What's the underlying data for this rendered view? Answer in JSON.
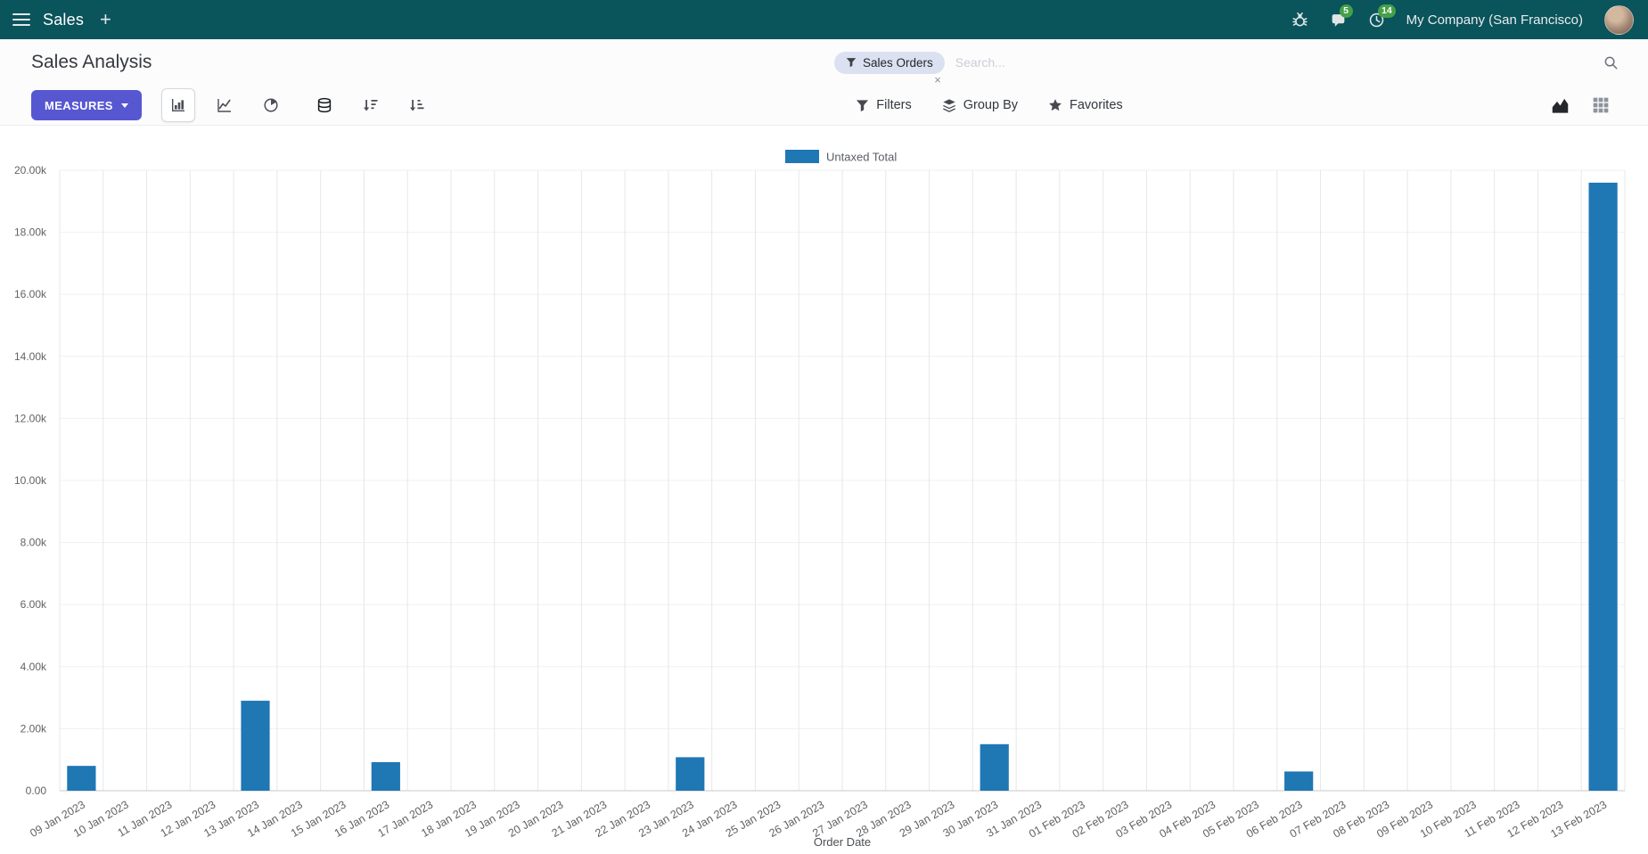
{
  "navbar": {
    "app_name": "Sales",
    "plus_label": "+",
    "messages_badge": "5",
    "activities_badge": "14",
    "company": "My Company (San Francisco)"
  },
  "control_panel": {
    "title": "Sales Analysis",
    "search": {
      "facet_label": "Sales Orders",
      "facet_remove": "×",
      "placeholder": "Search..."
    },
    "measures_label": "MEASURES",
    "filters_label": "Filters",
    "group_by_label": "Group By",
    "favorites_label": "Favorites"
  },
  "icons": {
    "menu-icon": "hamburger",
    "debug-icon": "bug",
    "messages-icon": "speech-bubble",
    "activities-icon": "clock",
    "search-icon": "magnifier",
    "filter-icon": "funnel",
    "group-by-icon": "layers",
    "favorites-icon": "star",
    "bar-chart-icon": "bars",
    "line-chart-icon": "polyline",
    "pie-chart-icon": "pie",
    "stacked-icon": "database",
    "sort-desc-icon": "arrow-down-bars",
    "sort-asc-icon": "arrow-up-bars",
    "graph-view-icon": "area-chart",
    "pivot-view-icon": "grid",
    "caret-down-icon": "▾"
  },
  "colors": {
    "navbar_bg": "#0a545c",
    "primary": "#5757d2",
    "badge_bg": "#45a049",
    "facet_bg": "#dbe1f0",
    "bar": "#1f77b4"
  },
  "chart_data": {
    "type": "bar",
    "title": "",
    "legend": [
      "Untaxed Total"
    ],
    "series_color": "#1f77b4",
    "xlabel": "Order Date",
    "ylabel": "",
    "ylim": [
      0,
      20000
    ],
    "ytick_step": 2000,
    "ytick_labels": [
      "0.00",
      "2.00k",
      "4.00k",
      "6.00k",
      "8.00k",
      "10.00k",
      "12.00k",
      "14.00k",
      "16.00k",
      "18.00k",
      "20.00k"
    ],
    "grid": true,
    "legend_position": "top-center",
    "categories": [
      "09 Jan 2023",
      "10 Jan 2023",
      "11 Jan 2023",
      "12 Jan 2023",
      "13 Jan 2023",
      "14 Jan 2023",
      "15 Jan 2023",
      "16 Jan 2023",
      "17 Jan 2023",
      "18 Jan 2023",
      "19 Jan 2023",
      "20 Jan 2023",
      "21 Jan 2023",
      "22 Jan 2023",
      "23 Jan 2023",
      "24 Jan 2023",
      "25 Jan 2023",
      "26 Jan 2023",
      "27 Jan 2023",
      "28 Jan 2023",
      "29 Jan 2023",
      "30 Jan 2023",
      "31 Jan 2023",
      "01 Feb 2023",
      "02 Feb 2023",
      "03 Feb 2023",
      "04 Feb 2023",
      "05 Feb 2023",
      "06 Feb 2023",
      "07 Feb 2023",
      "08 Feb 2023",
      "09 Feb 2023",
      "10 Feb 2023",
      "11 Feb 2023",
      "12 Feb 2023",
      "13 Feb 2023"
    ],
    "values": [
      800,
      0,
      0,
      0,
      2900,
      0,
      0,
      920,
      0,
      0,
      0,
      0,
      0,
      0,
      1080,
      0,
      0,
      0,
      0,
      0,
      0,
      1500,
      0,
      0,
      0,
      0,
      0,
      0,
      620,
      0,
      0,
      0,
      0,
      0,
      0,
      19600
    ]
  }
}
